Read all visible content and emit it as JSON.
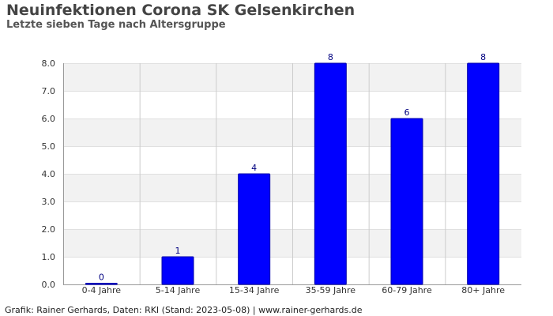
{
  "header": {
    "title": "Neuinfektionen Corona SK Gelsenkirchen",
    "subtitle": "Letzte sieben Tage nach Altersgruppe"
  },
  "footer": {
    "text": "Grafik: Rainer Gerhards, Daten: RKI (Stand: 2023-05-08) | www.rainer-gerhards.de"
  },
  "colors": {
    "bar": "#0000ff",
    "bar_stroke": "#0000aa",
    "band": "#f2f2f2",
    "grid": "#cccccc",
    "axis": "#999999",
    "label": "#333333",
    "value_label": "#000080"
  },
  "chart_data": {
    "type": "bar",
    "categories": [
      "0-4 Jahre",
      "5-14 Jahre",
      "15-34 Jahre",
      "35-59 Jahre",
      "60-79 Jahre",
      "80+ Jahre"
    ],
    "values": [
      0,
      1,
      4,
      8,
      6,
      8
    ],
    "value_labels": [
      "0",
      "1",
      "4",
      "8",
      "6",
      "8"
    ],
    "ylim": [
      0,
      8
    ],
    "yticks": [
      "0.0",
      "1.0",
      "2.0",
      "3.0",
      "4.0",
      "5.0",
      "6.0",
      "7.0",
      "8.0"
    ],
    "grid": true,
    "alternating_bands": true,
    "legend": "none"
  }
}
